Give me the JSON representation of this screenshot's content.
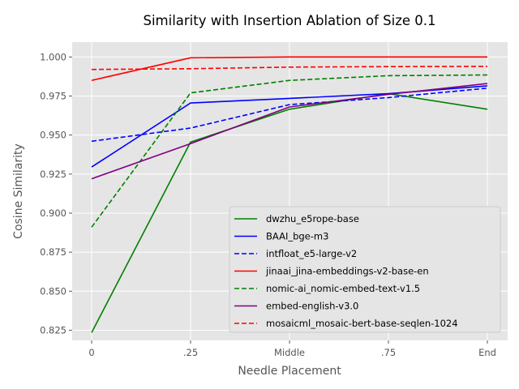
{
  "chart_data": {
    "type": "line",
    "title": "Similarity with Insertion Ablation of Size 0.1",
    "xlabel": "Needle Placement",
    "ylabel": "Cosine Similarity",
    "categories": [
      "0",
      ".25",
      "Middle",
      ".75",
      "End"
    ],
    "ylim": [
      0.8185,
      1.0095
    ],
    "yticks": [
      0.825,
      0.85,
      0.875,
      0.9,
      0.925,
      0.95,
      0.975,
      1.0
    ],
    "ytick_labels": [
      "0.825",
      "0.850",
      "0.875",
      "0.900",
      "0.925",
      "0.950",
      "0.975",
      "1.000"
    ],
    "grid": true,
    "legend_position": "lower-right",
    "series": [
      {
        "name": "dwzhu_e5rope-base",
        "color": "#008000",
        "dash": "solid",
        "values": [
          0.8235,
          0.9455,
          0.9665,
          0.9765,
          0.9665
        ]
      },
      {
        "name": "BAAI_bge-m3",
        "color": "#0000ff",
        "dash": "solid",
        "values": [
          0.9295,
          0.9705,
          0.9735,
          0.9765,
          0.9815
        ]
      },
      {
        "name": "intfloat_e5-large-v2",
        "color": "#0000ff",
        "dash": "dashed",
        "values": [
          0.946,
          0.9545,
          0.9695,
          0.974,
          0.98
        ]
      },
      {
        "name": "jinaai_jina-embeddings-v2-base-en",
        "color": "#ff0000",
        "dash": "solid",
        "values": [
          0.985,
          0.9995,
          1.0,
          1.0,
          1.0
        ]
      },
      {
        "name": "nomic-ai_nomic-embed-text-v1.5",
        "color": "#008000",
        "dash": "dashed",
        "values": [
          0.891,
          0.977,
          0.985,
          0.988,
          0.9885
        ]
      },
      {
        "name": "embed-english-v3.0",
        "color": "#800080",
        "dash": "solid",
        "values": [
          0.922,
          0.9445,
          0.968,
          0.976,
          0.983
        ]
      },
      {
        "name": "mosaicml_mosaic-bert-base-seqlen-1024",
        "color": "#ff0000",
        "dash": "dashed",
        "values": [
          0.992,
          0.9925,
          0.9935,
          0.9938,
          0.994
        ]
      }
    ]
  }
}
